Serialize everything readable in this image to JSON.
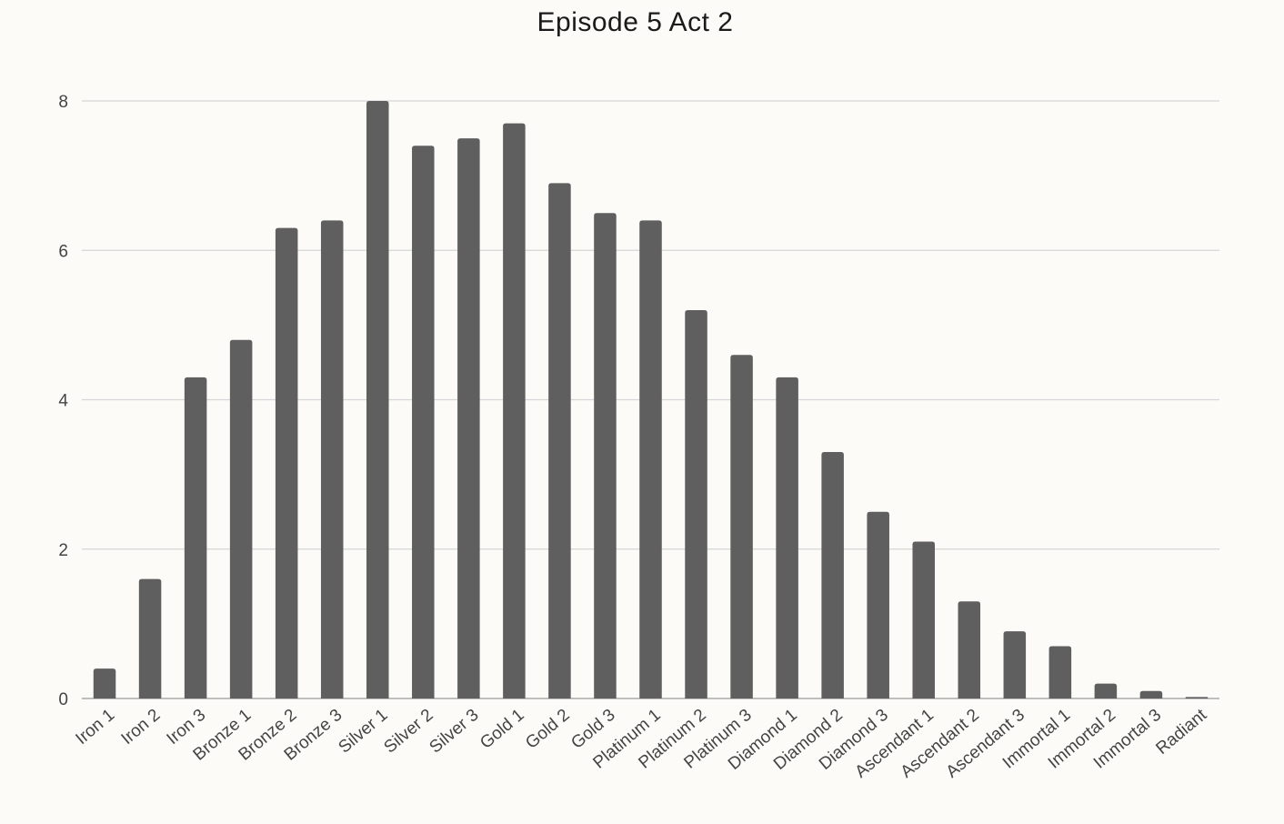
{
  "chart_data": {
    "type": "bar",
    "title": "Episode 5 Act 2",
    "xlabel": "",
    "ylabel": "",
    "ylim": [
      0,
      8
    ],
    "yticks": [
      0,
      2,
      4,
      6,
      8
    ],
    "grid": true,
    "legend": "none",
    "bar_color": "#5f5f5f",
    "categories": [
      "Iron 1",
      "Iron 2",
      "Iron 3",
      "Bronze 1",
      "Bronze 2",
      "Bronze 3",
      "Silver 1",
      "Silver 2",
      "Silver 3",
      "Gold 1",
      "Gold 2",
      "Gold 3",
      "Platinum 1",
      "Platinum 2",
      "Platinum 3",
      "Diamond 1",
      "Diamond 2",
      "Diamond 3",
      "Ascendant 1",
      "Ascendant 2",
      "Ascendant 3",
      "Immortal 1",
      "Immortal 2",
      "Immortal 3",
      "Radiant"
    ],
    "values": [
      0.4,
      1.6,
      4.3,
      4.8,
      6.3,
      6.4,
      8.0,
      7.4,
      7.5,
      7.7,
      6.9,
      6.5,
      6.4,
      5.2,
      4.6,
      4.3,
      3.3,
      2.5,
      2.1,
      1.3,
      0.9,
      0.7,
      0.2,
      0.1,
      0.02
    ]
  }
}
